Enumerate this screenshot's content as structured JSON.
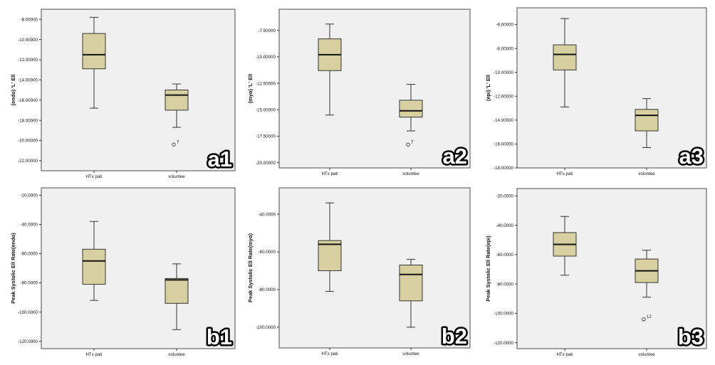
{
  "chart_data": [
    {
      "id": "a1",
      "type": "box",
      "panel_label": "a1",
      "ylabel": "(endo) 'L' Ell",
      "categories": [
        "HTx pati",
        "voluntee"
      ],
      "yticks": [
        -8,
        -10,
        -12,
        -14,
        -16,
        -18,
        -20,
        -22
      ],
      "tick_labels": [
        "-8.00000",
        "-10.00000",
        "-12.00000",
        "-14.00000",
        "-16.00000",
        "-18.00000",
        "-20.00000",
        "-22.00000"
      ],
      "ylim": [
        -23,
        -7
      ],
      "boxes": [
        {
          "min": -16.8,
          "q1": -12.9,
          "median": -11.5,
          "q3": -9.4,
          "max": -7.8
        },
        {
          "min": -18.7,
          "q1": -17.0,
          "median": -15.5,
          "q3": -15.0,
          "max": -14.4
        }
      ],
      "outliers": [
        {
          "category": 1,
          "value": -20.4,
          "label": "7"
        }
      ]
    },
    {
      "id": "a2",
      "type": "box",
      "panel_label": "a2",
      "ylabel": "(myo) 'L' Ell",
      "categories": [
        "HTx pati",
        "voluntee"
      ],
      "yticks": [
        -7.5,
        -10,
        -12.5,
        -15,
        -17.5,
        -20
      ],
      "tick_labels": [
        "-7.50000",
        "-10.00000",
        "-12.50000",
        "-15.00000",
        "-17.50000",
        "-20.00000"
      ],
      "ylim": [
        -20.5,
        -5.5
      ],
      "boxes": [
        {
          "min": -15.5,
          "q1": -11.3,
          "median": -9.8,
          "q3": -8.3,
          "max": -6.9
        },
        {
          "min": -17.0,
          "q1": -15.7,
          "median": -15.1,
          "q3": -14.1,
          "max": -12.6
        }
      ],
      "outliers": [
        {
          "category": 1,
          "value": -18.3,
          "label": "7"
        }
      ]
    },
    {
      "id": "a3",
      "type": "box",
      "panel_label": "a3",
      "ylabel": "(epi) 'L' Ell",
      "categories": [
        "HTx pati",
        "voluntee"
      ],
      "yticks": [
        -6,
        -8,
        -10,
        -12,
        -14,
        -16,
        -18
      ],
      "tick_labels": [
        "-6.00000",
        "-8.00000",
        "-10.00000",
        "-12.00000",
        "-14.00000",
        "-16.00000",
        "-18.00000"
      ],
      "ylim": [
        -18,
        -4.6
      ],
      "boxes": [
        {
          "min": -12.9,
          "q1": -9.8,
          "median": -8.5,
          "q3": -7.7,
          "max": -5.5
        },
        {
          "min": -16.3,
          "q1": -14.9,
          "median": -13.6,
          "q3": -13.1,
          "max": -12.2
        }
      ],
      "outliers": []
    },
    {
      "id": "b1",
      "type": "box",
      "panel_label": "b1",
      "ylabel": "Peak Systolic Ell Rate(endo)",
      "categories": [
        "HTx pati",
        "voluntee"
      ],
      "yticks": [
        -20,
        -40,
        -60,
        -80,
        -100,
        -120
      ],
      "tick_labels": [
        "-20.0000",
        "-40.0000",
        "-60.0000",
        "-80.0000",
        "-100.0000",
        "-120.0000"
      ],
      "ylim": [
        -125,
        -15
      ],
      "boxes": [
        {
          "min": -92,
          "q1": -81,
          "median": -65,
          "q3": -57,
          "max": -38
        },
        {
          "min": -112,
          "q1": -94,
          "median": -78,
          "q3": -77,
          "max": -67
        }
      ],
      "outliers": []
    },
    {
      "id": "b2",
      "type": "box",
      "panel_label": "b2",
      "ylabel": "Peak Systolic Ell Rate(myo)",
      "categories": [
        "HTx pati",
        "voluntee"
      ],
      "yticks": [
        -40,
        -60,
        -80,
        -100
      ],
      "tick_labels": [
        "-40.0000",
        "-60.0000",
        "-80.0000",
        "-100.0000"
      ],
      "ylim": [
        -111,
        -26
      ],
      "boxes": [
        {
          "min": -81,
          "q1": -70,
          "median": -56,
          "q3": -54,
          "max": -34
        },
        {
          "min": -100,
          "q1": -86,
          "median": -72,
          "q3": -67,
          "max": -64
        }
      ],
      "outliers": []
    },
    {
      "id": "b3",
      "type": "box",
      "panel_label": "b3",
      "ylabel": "Peak Systolic Ell Rate(epi)",
      "categories": [
        "HTx pati",
        "voluntee"
      ],
      "yticks": [
        -20,
        -40,
        -60,
        -80,
        -100,
        -120
      ],
      "tick_labels": [
        "-20.0000",
        "-40.0000",
        "-60.0000",
        "-80.0000",
        "-100.0000",
        "-120.0000"
      ],
      "ylim": [
        -124,
        -15
      ],
      "boxes": [
        {
          "min": -74,
          "q1": -61,
          "median": -53,
          "q3": -45,
          "max": -34
        },
        {
          "min": -89,
          "q1": -79,
          "median": -71,
          "q3": -63,
          "max": -57
        }
      ],
      "outliers": [
        {
          "category": 1,
          "value": -104,
          "label": "12"
        }
      ]
    }
  ]
}
